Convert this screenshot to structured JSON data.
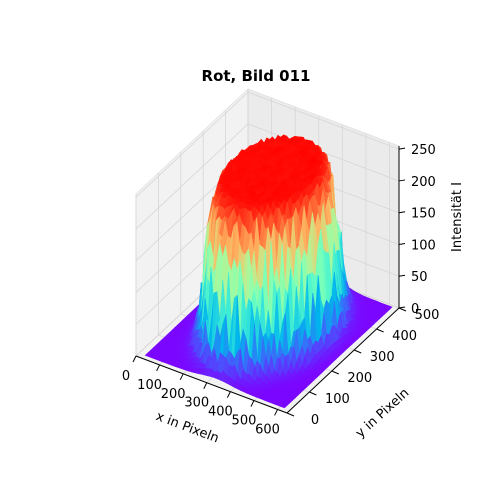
{
  "chart_data": {
    "type": "surface3d",
    "title": "Rot, Bild 011",
    "xlabel": "x in Pixeln",
    "ylabel": "y in Pixeln",
    "zlabel": "Intensität I",
    "xlim": [
      0,
      640
    ],
    "ylim": [
      0,
      500
    ],
    "zlim": [
      0,
      255
    ],
    "xticks": [
      "0",
      "100",
      "200",
      "300",
      "400",
      "500",
      "600"
    ],
    "yticks": [
      "0",
      "100",
      "200",
      "300",
      "400",
      "500"
    ],
    "zticks": [
      "0",
      "50",
      "100",
      "150",
      "200",
      "250"
    ],
    "colormap": "rainbow",
    "grid": true,
    "surface_shape": "saturated disc (I≈255) with a steep falloff at its rim, background near 0",
    "disc_center": [
      330,
      260
    ],
    "disc_radius": 210,
    "peak_intensity": 255,
    "background_intensity": 2
  }
}
